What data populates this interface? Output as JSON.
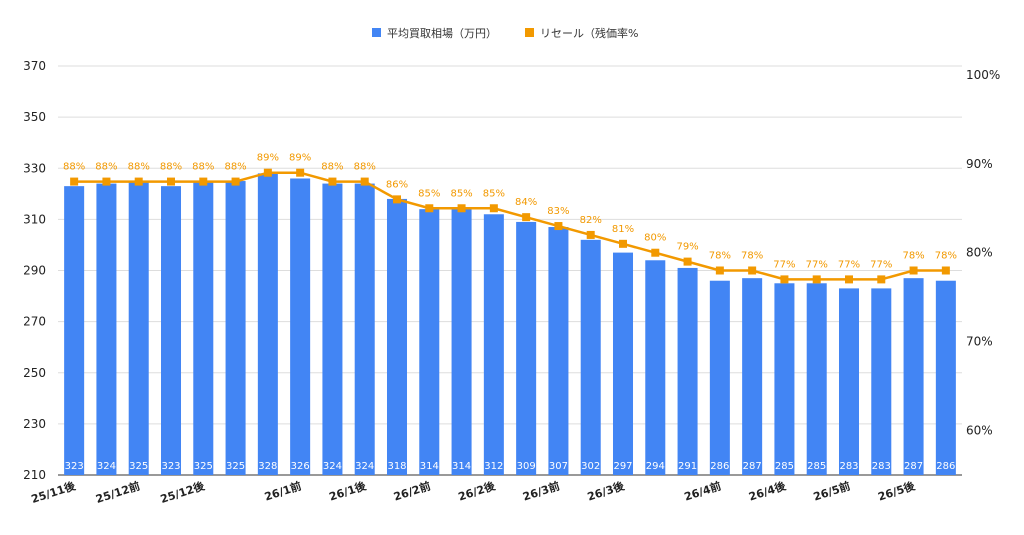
{
  "chart_data": {
    "type": "bar",
    "categories": [
      "25/11後",
      "",
      "25/12前",
      "",
      "25/12後",
      "",
      "",
      "26/1前",
      "",
      "26/1後",
      "",
      "26/2前",
      "",
      "26/2後",
      "",
      "26/3前",
      "",
      "26/3後",
      "",
      "",
      "26/4前",
      "",
      "26/4後",
      "",
      "26/5前",
      "",
      "26/5後",
      ""
    ],
    "series": [
      {
        "name": "平均買取相場（万円）",
        "type": "bar",
        "axis": "left",
        "color": "#4285f4",
        "values": [
          323,
          324,
          325,
          323,
          325,
          325,
          328,
          326,
          324,
          324,
          318,
          314,
          314,
          312,
          309,
          307,
          302,
          297,
          294,
          291,
          286,
          287,
          285,
          285,
          283,
          283,
          287,
          286
        ],
        "labels": [
          "323",
          "324",
          "325",
          "323",
          "325",
          "325",
          "328",
          "326",
          "324",
          "324",
          "318",
          "314",
          "314",
          "312",
          "309",
          "307",
          "302",
          "297",
          "294",
          "291",
          "286",
          "287",
          "285",
          "285",
          "283",
          "283",
          "287",
          "286"
        ]
      },
      {
        "name": "リセール（残価率%",
        "type": "line",
        "axis": "right",
        "color": "#f29900",
        "values": [
          88,
          88,
          88,
          88,
          88,
          88,
          89,
          89,
          88,
          88,
          86,
          85,
          85,
          85,
          84,
          83,
          82,
          81,
          80,
          79,
          78,
          78,
          77,
          77,
          77,
          77,
          78,
          78
        ],
        "labels": [
          "88%",
          "88%",
          "88%",
          "88%",
          "88%",
          "88%",
          "89%",
          "89%",
          "88%",
          "88%",
          "86%",
          "85%",
          "85%",
          "85%",
          "84%",
          "83%",
          "82%",
          "81%",
          "80%",
          "79%",
          "78%",
          "78%",
          "77%",
          "77%",
          "77%",
          "77%",
          "78%",
          "78%"
        ]
      }
    ],
    "y_left": {
      "min": 210,
      "max": 370,
      "ticks": [
        "210",
        "230",
        "250",
        "270",
        "290",
        "310",
        "330",
        "350",
        "370"
      ]
    },
    "y_right": {
      "min": 55,
      "max": 101,
      "ticks": [
        60,
        70,
        80,
        90,
        100
      ],
      "tick_labels": [
        "60%",
        "70%",
        "80%",
        "90%",
        "100%"
      ]
    },
    "grid": true,
    "legend": "top-center"
  }
}
